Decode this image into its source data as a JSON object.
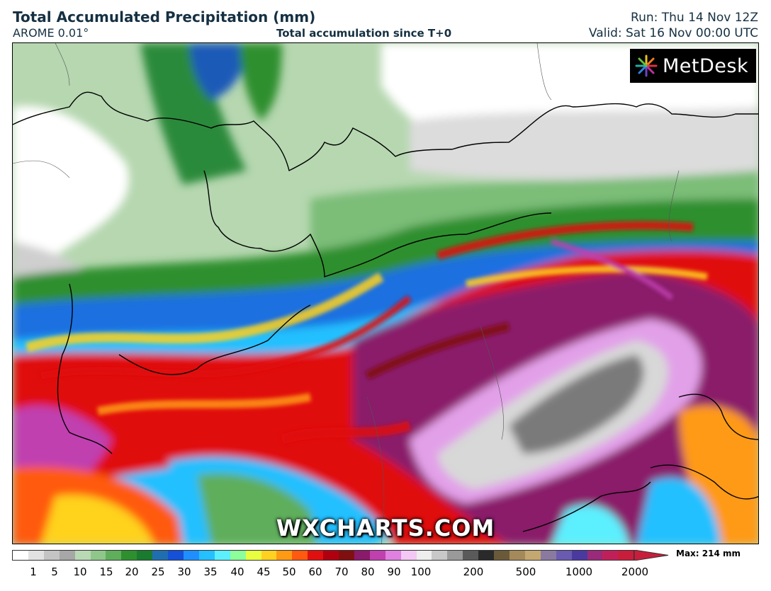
{
  "header": {
    "title": "Total Accumulated Precipitation (mm)",
    "model": "AROME 0.01°",
    "subtitle": "Total accumulation since T+0",
    "run": "Run: Thu 14 Nov 12Z",
    "valid": "Valid: Sat 16 Nov 00:00 UTC"
  },
  "branding": {
    "logo_text": "MetDesk",
    "logo_icon": "metdesk-starburst-icon",
    "watermark": "WXCHARTS.COM"
  },
  "legend": {
    "max_label": "Max: 214 mm",
    "ticks": [
      "1",
      "5",
      "10",
      "15",
      "20",
      "25",
      "30",
      "35",
      "40",
      "45",
      "50",
      "60",
      "70",
      "80",
      "90",
      "100",
      "200",
      "500",
      "1000",
      "2000"
    ],
    "colors": [
      "#ffffff",
      "#e2e2e2",
      "#c4c4c4",
      "#a7a7a7",
      "#b8d9b4",
      "#8fc78a",
      "#5fae5c",
      "#2e8f2e",
      "#1a7a2e",
      "#1f6fb0",
      "#1450d8",
      "#1f8fff",
      "#24c0ff",
      "#5cf0ff",
      "#8cff9a",
      "#e8ff40",
      "#ffd21f",
      "#ff9a14",
      "#ff5a0f",
      "#e01010",
      "#b00010",
      "#801010",
      "#8a1a6a",
      "#c040b0",
      "#e080e0",
      "#f4c8f4",
      "#eeeeee",
      "#c8c8c8",
      "#9a9a9a",
      "#5a5a5a",
      "#2a2a2a",
      "#6a5a3a",
      "#a48a5a",
      "#c4a870",
      "#8a7aa0",
      "#6a5ab0",
      "#4a3aa0",
      "#9a2a7a",
      "#c0205a",
      "#c81e3c"
    ]
  }
}
